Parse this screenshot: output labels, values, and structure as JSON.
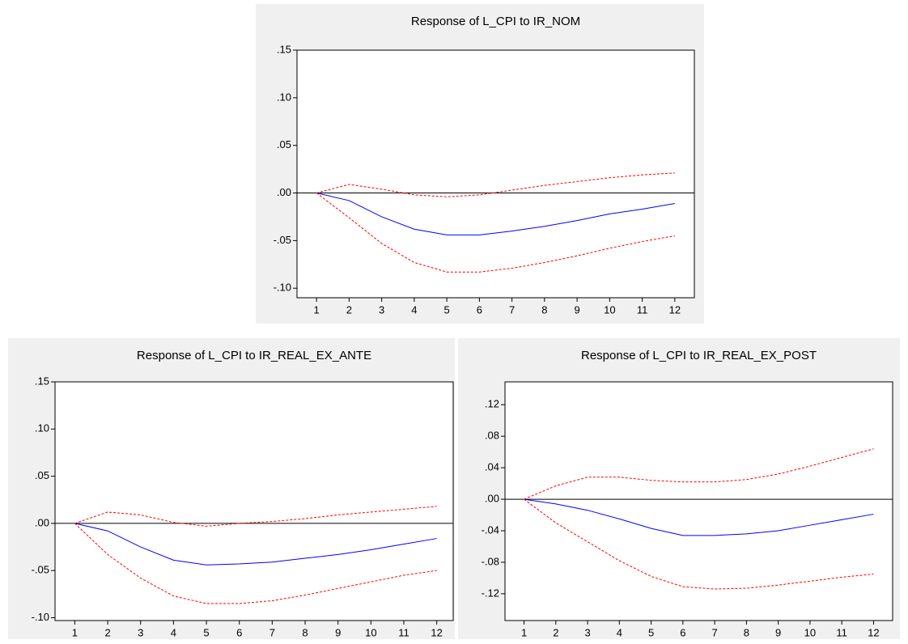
{
  "chart_data": [
    {
      "type": "line",
      "title": "Response of L_CPI to IR_NOM",
      "x": [
        1,
        2,
        3,
        4,
        5,
        6,
        7,
        8,
        9,
        10,
        11,
        12
      ],
      "xlim": [
        0.4,
        12.6
      ],
      "xticks": [
        1,
        2,
        3,
        4,
        5,
        6,
        7,
        8,
        9,
        10,
        11,
        12
      ],
      "ylim": [
        -0.11,
        0.15
      ],
      "yticks": [
        {
          "value": -0.1,
          "label": "-.10"
        },
        {
          "value": -0.05,
          "label": "-.05"
        },
        {
          "value": 0,
          "label": ".00"
        },
        {
          "value": 0.05,
          "label": ".05"
        },
        {
          "value": 0.1,
          "label": ".10"
        },
        {
          "value": 0.15,
          "label": ".15"
        }
      ],
      "zero_line": true,
      "series": [
        {
          "color": "#0000ff",
          "dashed": false,
          "values": [
            0,
            -0.008,
            -0.025,
            -0.038,
            -0.044,
            -0.044,
            -0.04,
            -0.035,
            -0.029,
            -0.022,
            -0.017,
            -0.011
          ]
        },
        {
          "color": "#ff0000",
          "dashed": true,
          "values": [
            0,
            0.009,
            0.004,
            -0.002,
            -0.004,
            -0.002,
            0.003,
            0.008,
            0.012,
            0.016,
            0.019,
            0.021
          ]
        },
        {
          "color": "#ff0000",
          "dashed": true,
          "values": [
            0,
            -0.026,
            -0.053,
            -0.073,
            -0.083,
            -0.083,
            -0.079,
            -0.073,
            -0.066,
            -0.058,
            -0.051,
            -0.045
          ]
        }
      ]
    },
    {
      "type": "line",
      "title": "Response of L_CPI to IR_REAL_EX_ANTE",
      "x": [
        1,
        2,
        3,
        4,
        5,
        6,
        7,
        8,
        9,
        10,
        11,
        12
      ],
      "xlim": [
        0.4,
        12.5
      ],
      "xticks": [
        1,
        2,
        3,
        4,
        5,
        6,
        7,
        8,
        9,
        10,
        11,
        12
      ],
      "ylim": [
        -0.103,
        0.15
      ],
      "yticks": [
        {
          "value": -0.1,
          "label": "-.10"
        },
        {
          "value": -0.05,
          "label": "-.05"
        },
        {
          "value": 0,
          "label": ".00"
        },
        {
          "value": 0.05,
          "label": ".05"
        },
        {
          "value": 0.1,
          "label": ".10"
        },
        {
          "value": 0.15,
          "label": ".15"
        }
      ],
      "zero_line": true,
      "series": [
        {
          "color": "#0000ff",
          "dashed": false,
          "values": [
            0,
            -0.008,
            -0.025,
            -0.039,
            -0.044,
            -0.043,
            -0.041,
            -0.037,
            -0.033,
            -0.028,
            -0.022,
            -0.016
          ]
        },
        {
          "color": "#ff0000",
          "dashed": true,
          "values": [
            0,
            0.012,
            0.009,
            0.001,
            -0.003,
            0.0,
            0.002,
            0.005,
            0.009,
            0.012,
            0.015,
            0.018
          ]
        },
        {
          "color": "#ff0000",
          "dashed": true,
          "values": [
            0,
            -0.033,
            -0.058,
            -0.077,
            -0.085,
            -0.085,
            -0.082,
            -0.076,
            -0.069,
            -0.062,
            -0.055,
            -0.05
          ]
        }
      ]
    },
    {
      "type": "line",
      "title": "Response of L_CPI to IR_REAL_EX_POST",
      "x": [
        1,
        2,
        3,
        4,
        5,
        6,
        7,
        8,
        9,
        10,
        11,
        12
      ],
      "xlim": [
        0.4,
        12.6
      ],
      "xticks": [
        1,
        2,
        3,
        4,
        5,
        6,
        7,
        8,
        9,
        10,
        11,
        12
      ],
      "ylim": [
        -0.154,
        0.149
      ],
      "yticks": [
        {
          "value": -0.12,
          "label": "-.12"
        },
        {
          "value": -0.08,
          "label": "-.08"
        },
        {
          "value": -0.04,
          "label": "-.04"
        },
        {
          "value": 0,
          "label": ".00"
        },
        {
          "value": 0.04,
          "label": ".04"
        },
        {
          "value": 0.08,
          "label": ".08"
        },
        {
          "value": 0.12,
          "label": ".12"
        }
      ],
      "zero_line": true,
      "series": [
        {
          "color": "#0000ff",
          "dashed": false,
          "values": [
            0,
            -0.006,
            -0.014,
            -0.025,
            -0.037,
            -0.046,
            -0.046,
            -0.044,
            -0.04,
            -0.033,
            -0.026,
            -0.019
          ]
        },
        {
          "color": "#ff0000",
          "dashed": true,
          "values": [
            0,
            0.017,
            0.028,
            0.028,
            0.024,
            0.022,
            0.022,
            0.025,
            0.032,
            0.042,
            0.053,
            0.064
          ]
        },
        {
          "color": "#ff0000",
          "dashed": true,
          "values": [
            0,
            -0.03,
            -0.054,
            -0.078,
            -0.098,
            -0.111,
            -0.114,
            -0.113,
            -0.109,
            -0.104,
            -0.099,
            -0.095
          ]
        }
      ]
    }
  ]
}
